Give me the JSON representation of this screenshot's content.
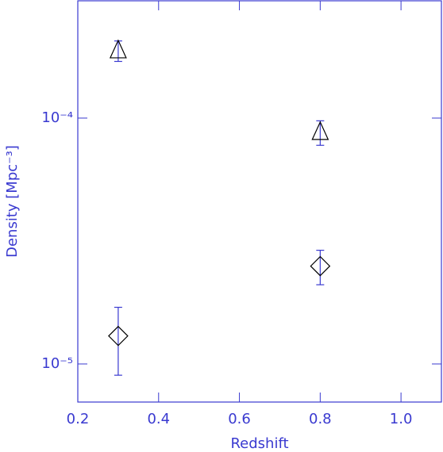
{
  "chart_data": {
    "type": "scatter",
    "x_label": "Redshift",
    "y_label": "Density [Mpc⁻³]",
    "xlim": [
      0.2,
      1.1
    ],
    "xticks": [
      0.2,
      0.4,
      0.6,
      0.8,
      {
        "value": 1,
        "label": "1.0"
      }
    ],
    "ylim": [
      7e-06,
      0.0003
    ],
    "yticks": [
      {
        "value": 1e-05,
        "label": "10⁻⁵"
      },
      {
        "value": 0.0001,
        "label": "10⁻⁴"
      }
    ],
    "log_y": true,
    "axis_color": "#3a3ad0",
    "error_color": "#3a3ad0",
    "series": [
      {
        "marker": "triangle",
        "color": "#000000",
        "x": [
          0.3,
          0.8
        ],
        "values": [
          0.000188,
          8.75e-05
        ],
        "errors": [
          1.8e-05,
          1e-05
        ]
      },
      {
        "marker": "diamond",
        "color": "#000000",
        "x": [
          0.3,
          0.8
        ],
        "values": [
          1.3e-05,
          2.5e-05
        ],
        "errors": [
          4e-06,
          4e-06
        ]
      }
    ]
  }
}
